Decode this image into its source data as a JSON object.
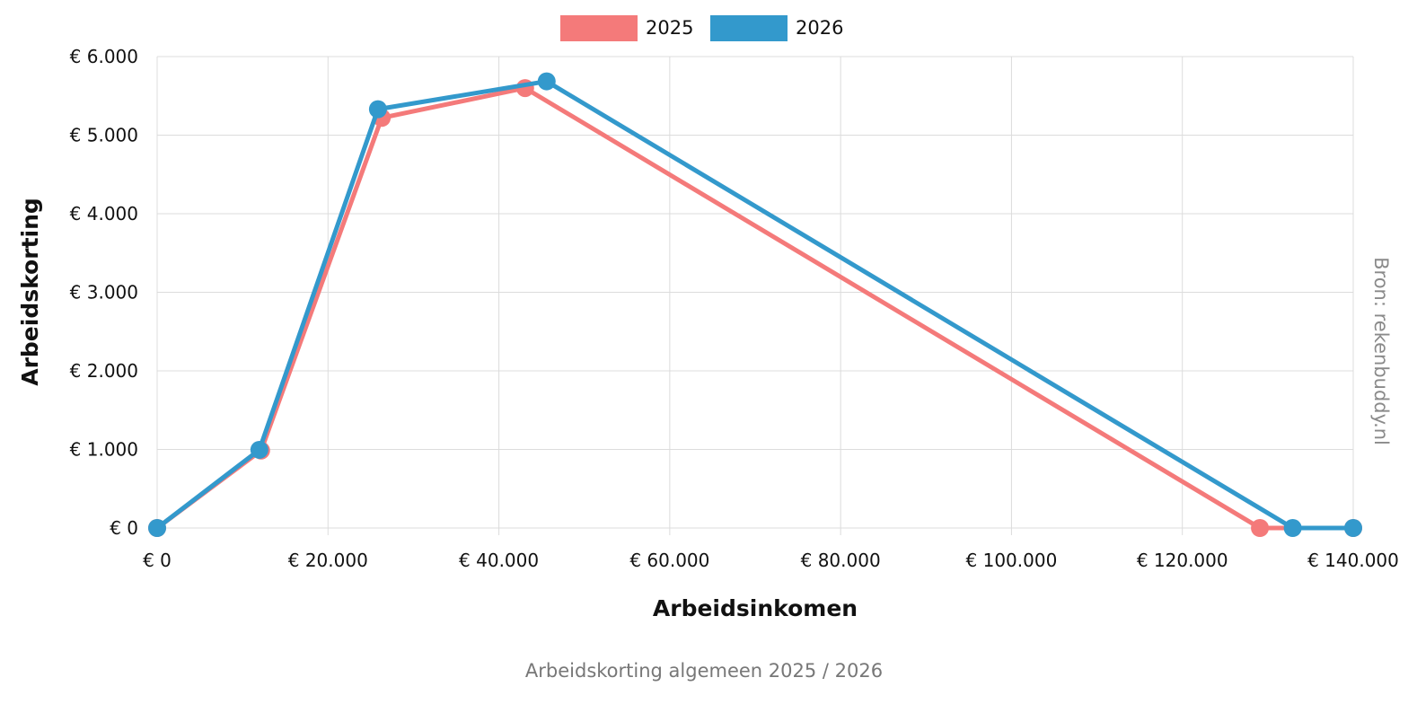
{
  "chart_data": {
    "type": "line",
    "title": "Arbeidskorting algemeen 2025 / 2026",
    "xlabel": "Arbeidsinkomen",
    "ylabel": "Arbeidskorting",
    "source": "Bron: rekenbuddy.nl",
    "xlim": [
      0,
      140000
    ],
    "ylim": [
      0,
      6000
    ],
    "x_ticks": [
      0,
      20000,
      40000,
      60000,
      80000,
      100000,
      120000,
      140000
    ],
    "x_tick_labels": [
      "€ 0",
      "€ 20.000",
      "€ 40.000",
      "€ 60.000",
      "€ 80.000",
      "€ 100.000",
      "€ 120.000",
      "€ 140.000"
    ],
    "y_ticks": [
      0,
      1000,
      2000,
      3000,
      4000,
      5000,
      6000
    ],
    "y_tick_labels": [
      "€ 0",
      "€ 1.000",
      "€ 2.000",
      "€ 3.000",
      "€ 4.000",
      "€ 5.000",
      "€ 6.000"
    ],
    "grid": true,
    "legend_position": "top-center",
    "series": [
      {
        "name": "2025",
        "color": "#f47a7a",
        "x": [
          0,
          12169,
          26288,
          43071,
          129078,
          140000
        ],
        "y": [
          0,
          986,
          5220,
          5599,
          0,
          0
        ]
      },
      {
        "name": "2026",
        "color": "#3399cc",
        "x": [
          0,
          11965,
          25845,
          45592,
          132920,
          140000
        ],
        "y": [
          0,
          995,
          5330,
          5685,
          0,
          0
        ]
      }
    ]
  }
}
